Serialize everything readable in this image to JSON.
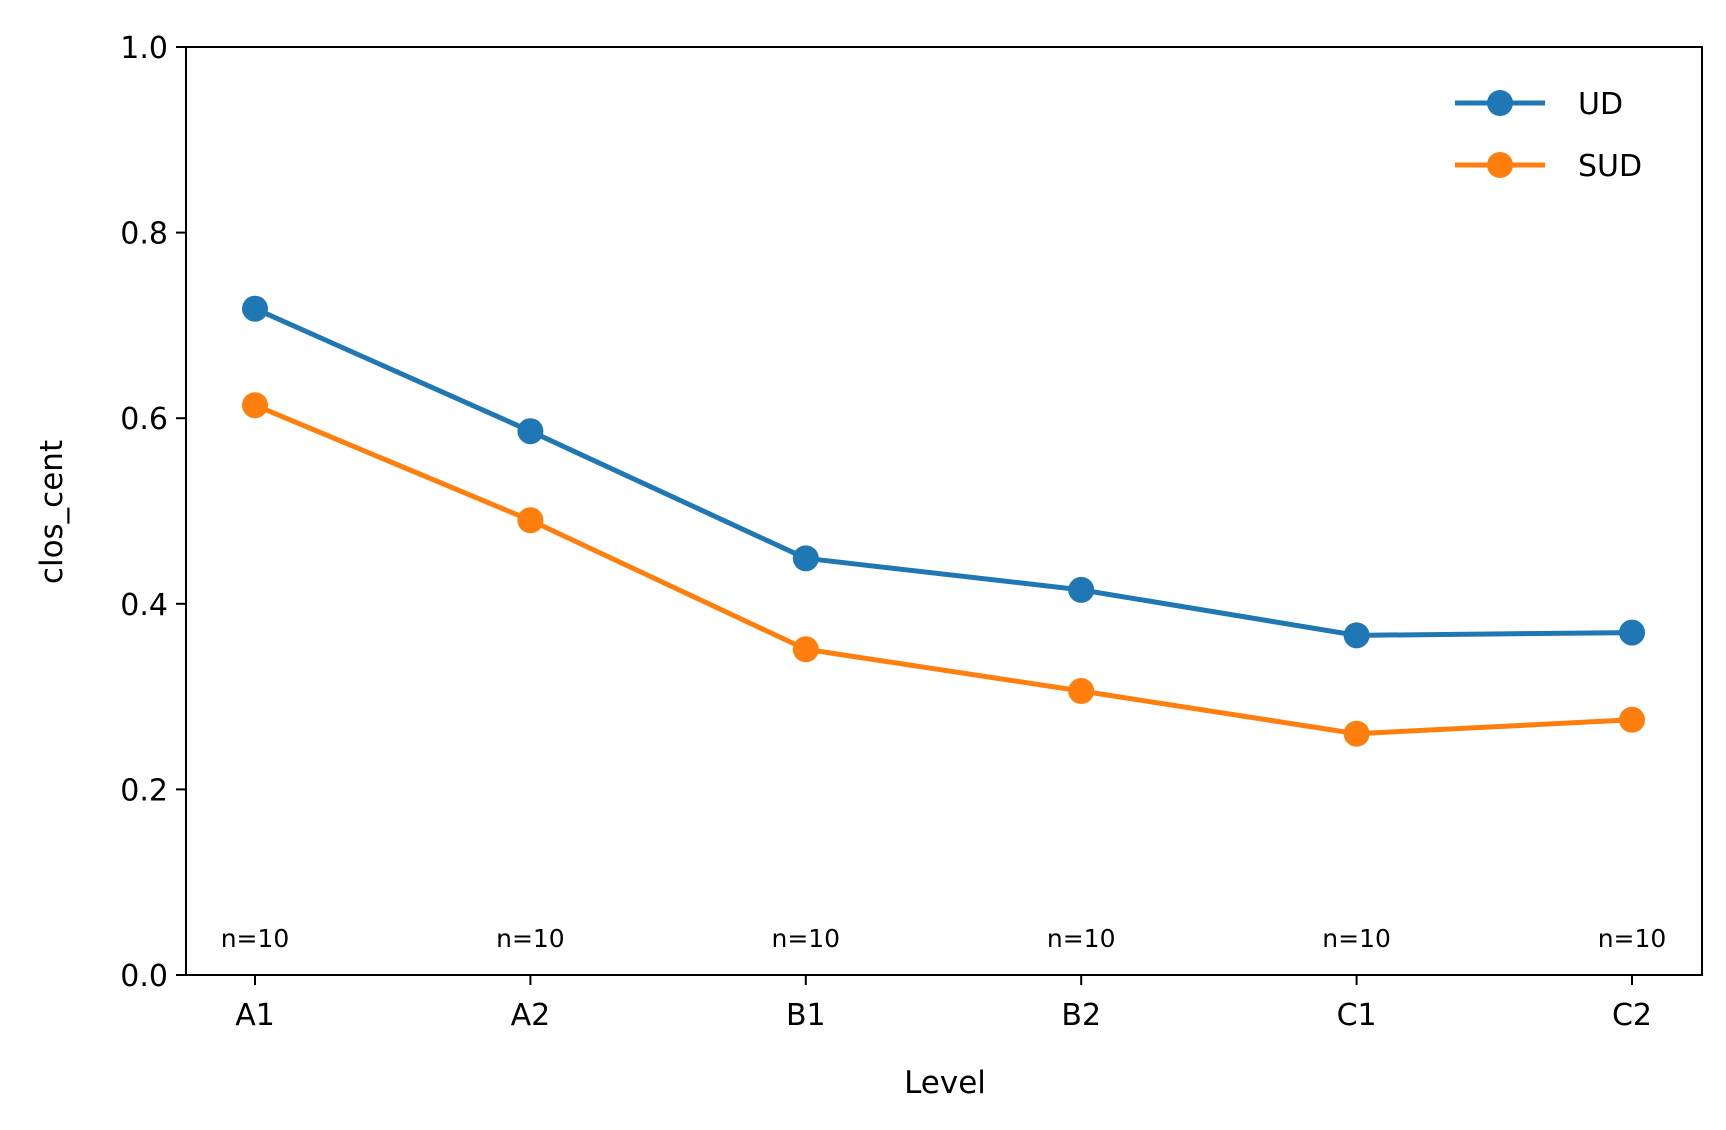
{
  "chart_data": {
    "type": "line",
    "title": "",
    "xlabel": "Level",
    "ylabel": "clos_cent",
    "categories": [
      "A1",
      "A2",
      "B1",
      "B2",
      "C1",
      "C2"
    ],
    "ylim": [
      0,
      1.0
    ],
    "yticks": [
      0.0,
      0.2,
      0.4,
      0.6,
      0.8,
      1.0
    ],
    "ytick_labels": [
      "0.0",
      "0.2",
      "0.4",
      "0.6",
      "0.8",
      "1.0"
    ],
    "grid": false,
    "legend_position": "top-right",
    "series": [
      {
        "name": "UD",
        "color": "#1f77b4",
        "values": [
          0.718,
          0.586,
          0.449,
          0.415,
          0.366,
          0.369
        ]
      },
      {
        "name": "SUD",
        "color": "#ff7f0e",
        "values": [
          0.614,
          0.49,
          0.351,
          0.306,
          0.26,
          0.275
        ]
      }
    ],
    "annotations": [
      "n=10",
      "n=10",
      "n=10",
      "n=10",
      "n=10",
      "n=10"
    ],
    "annotation_y": 0.04
  }
}
